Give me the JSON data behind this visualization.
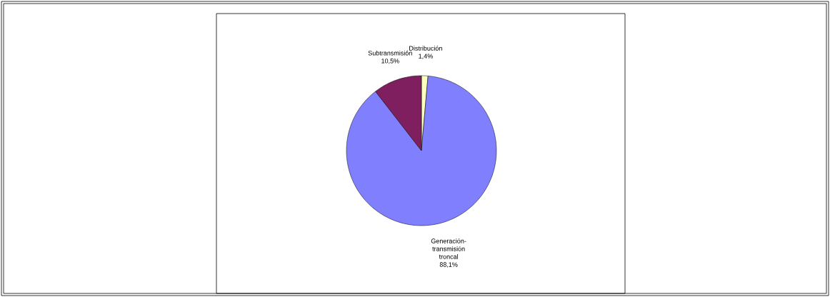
{
  "chart_data": {
    "type": "pie",
    "categories": [
      "Distribución",
      "Generación-transmisión troncal",
      "Subtransmisión"
    ],
    "values": [
      1.4,
      88.1,
      10.5
    ],
    "value_labels": [
      "1,4%",
      "88,1%",
      "10,5%"
    ],
    "colors": [
      "#ffffc0",
      "#8080ff",
      "#7f1f5f"
    ]
  }
}
